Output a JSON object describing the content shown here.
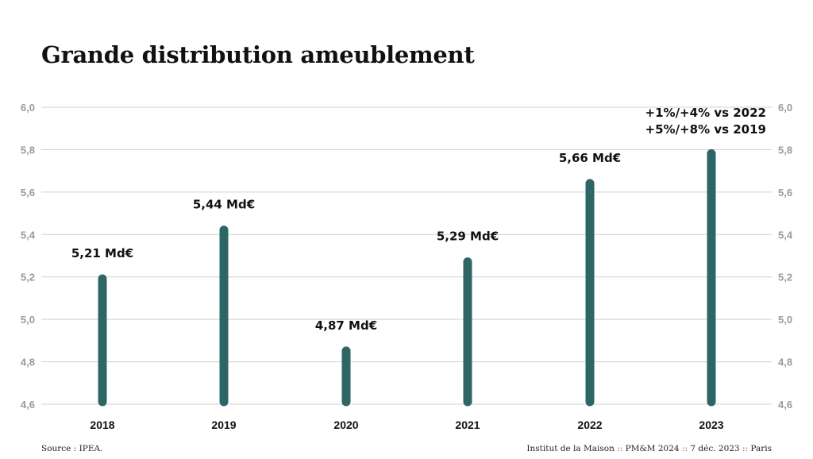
{
  "title": "Grande distribution ameublement",
  "chart_data": {
    "type": "bar",
    "categories": [
      "2018",
      "2019",
      "2020",
      "2021",
      "2022",
      "2023"
    ],
    "values": [
      5.21,
      5.44,
      4.87,
      5.29,
      5.66,
      5.8
    ],
    "data_labels": [
      "5,21 Md€",
      "5,44 Md€",
      "4,87 Md€",
      "5,29 Md€",
      "5,66 Md€",
      ""
    ],
    "annotation": [
      "+1%/+4% vs 2022",
      "+5%/+8% vs 2019"
    ],
    "ylim": [
      4.6,
      6.0
    ],
    "yticks": [
      "4,6",
      "4,8",
      "5,0",
      "5,2",
      "5,4",
      "5,6",
      "5,8",
      "6,0"
    ],
    "grid": true,
    "bar_color": "#2d6665",
    "grid_color": "#d0d0d0",
    "tick_color": "#9a9a9a"
  },
  "footer": {
    "source": "Source : IPEA.",
    "credit_parts": [
      "Institut de la Maison",
      "PM&M 2024",
      "7 déc. 2023",
      "Paris"
    ],
    "separator": "::",
    "separator_color": "#c0392b"
  }
}
